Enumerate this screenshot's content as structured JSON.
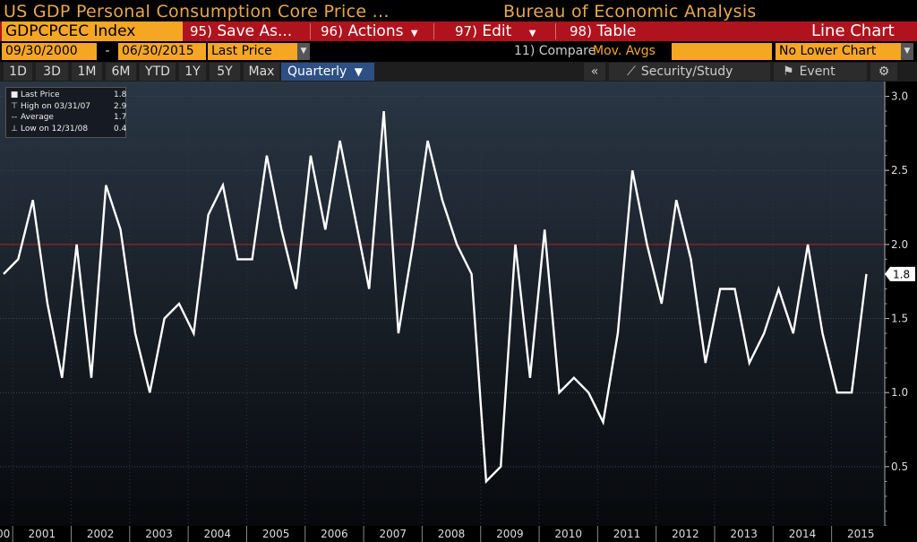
{
  "header": {
    "title": "US GDP Personal Consumption Core Price ...",
    "source": "Bureau of Economic Analysis"
  },
  "toolbar": {
    "ticker": "GDPCPCEC Index",
    "save": {
      "num": "95)",
      "label": "Save As..."
    },
    "actions": {
      "num": "96)",
      "label": "Actions"
    },
    "edit": {
      "num": "97)",
      "label": "Edit"
    },
    "table": {
      "num": "98)",
      "label": "Table"
    },
    "chart_type": "Line Chart"
  },
  "date_row": {
    "start_date": "09/30/2000",
    "dash": "-",
    "end_date": "06/30/2015",
    "price_field": "Last Price",
    "compare_num": "11) Compare",
    "compare_value": "Mov. Avgs",
    "lower_chart": "No Lower Chart"
  },
  "range_row": {
    "ranges": [
      "1D",
      "3D",
      "1M",
      "6M",
      "YTD",
      "1Y",
      "5Y",
      "Max"
    ],
    "frequency": "Quarterly",
    "collapse": "«",
    "study": "Security/Study",
    "event": "Event",
    "gear": "⚙"
  },
  "legend": {
    "last_label": "Last Price",
    "last_value": "1.8",
    "high_label": "High on 03/31/07",
    "high_value": "2.9",
    "avg_label": "Average",
    "avg_value": "1.7",
    "low_label": "Low on 12/31/08",
    "low_value": "0.4"
  },
  "colors": {
    "orange": "#f5a623",
    "toolbar_red": "#b0131d",
    "line": "#ffffff",
    "reference_line": "#b22222"
  },
  "chart_data": {
    "type": "line",
    "x_first_label": "00",
    "x_labels": [
      "2001",
      "2002",
      "2003",
      "2004",
      "2005",
      "2006",
      "2007",
      "2008",
      "2009",
      "2010",
      "2011",
      "2012",
      "2013",
      "2014",
      "2015"
    ],
    "series": [
      {
        "values": [
          1.8,
          1.9,
          2.3,
          1.6,
          1.1,
          2.0,
          1.1,
          2.4,
          2.1,
          1.4,
          1.0,
          1.5,
          1.6,
          1.4,
          2.2,
          2.4,
          1.9,
          1.9,
          2.6,
          2.1,
          1.7,
          2.6,
          2.1,
          2.7,
          2.2,
          1.7,
          2.9,
          1.4,
          2.0,
          2.7,
          2.3,
          2.0,
          1.8,
          0.4,
          0.5,
          2.0,
          1.1,
          2.1,
          1.0,
          1.1,
          1.0,
          0.8,
          1.4,
          2.5,
          2.0,
          1.6,
          2.3,
          1.9,
          1.2,
          1.7,
          1.7,
          1.2,
          1.4,
          1.7,
          1.4,
          2.0,
          1.4,
          1.0,
          1.0,
          1.8
        ]
      }
    ],
    "y_ticks": [
      "0.5",
      "1.0",
      "1.5",
      "2.0",
      "2.5",
      "3.0"
    ],
    "ylim": [
      0.1,
      3.1
    ],
    "reference_line": 2.0,
    "last_value_label": "1.8"
  }
}
